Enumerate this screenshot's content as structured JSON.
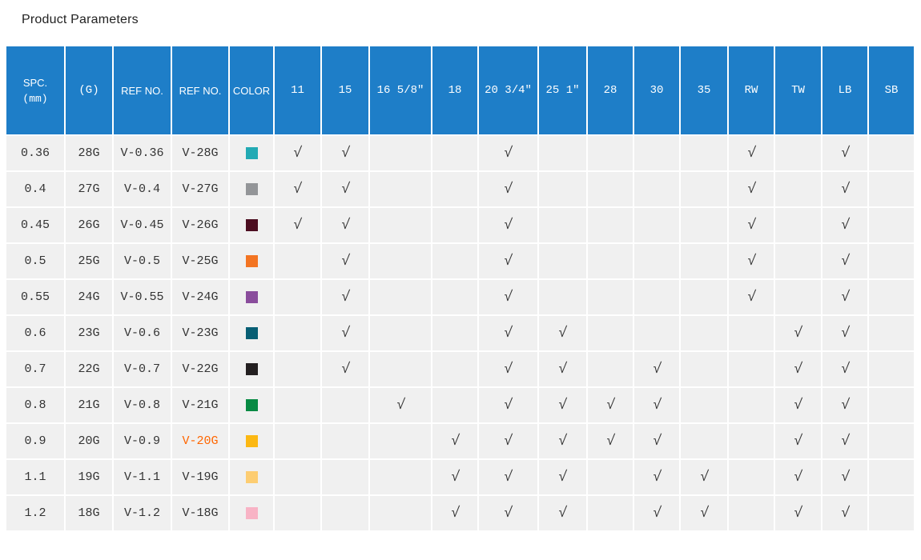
{
  "page": {
    "title": "Product Parameters"
  },
  "colors": {
    "header_bg": "#1e7ec8",
    "cell_bg": "#f0f0f0",
    "text": "#333333",
    "highlight": "#ff6600",
    "title_text": "#222222"
  },
  "table": {
    "header": {
      "spc_label": "SPC.",
      "spc_unit": "(mm)",
      "gauge_label": "(G)",
      "ref_no_1_label": "REF NO.",
      "ref_no_2_label": "REF NO.",
      "color_label": "COLOR",
      "check_columns": [
        "11",
        "15",
        "16 5/8″",
        "18",
        "20 3/4″",
        "25 1″",
        "28",
        "30",
        "35",
        "RW",
        "TW",
        "LB",
        "SB"
      ]
    },
    "check_glyph": "√",
    "rows": [
      {
        "spc": "0.36",
        "gauge": "28G",
        "ref_no_1": "V-0.36",
        "ref_no_2": "V-28G",
        "ref_no_2_highlight": false,
        "swatch_color": "#22aab4",
        "checks": [
          1,
          1,
          0,
          0,
          1,
          0,
          0,
          0,
          0,
          1,
          0,
          1,
          0
        ]
      },
      {
        "spc": "0.4",
        "gauge": "27G",
        "ref_no_1": "V-0.4",
        "ref_no_2": "V-27G",
        "ref_no_2_highlight": false,
        "swatch_color": "#939598",
        "checks": [
          1,
          1,
          0,
          0,
          1,
          0,
          0,
          0,
          0,
          1,
          0,
          1,
          0
        ]
      },
      {
        "spc": "0.45",
        "gauge": "26G",
        "ref_no_1": "V-0.45",
        "ref_no_2": "V-26G",
        "ref_no_2_highlight": false,
        "swatch_color": "#4c0d20",
        "checks": [
          1,
          1,
          0,
          0,
          1,
          0,
          0,
          0,
          0,
          1,
          0,
          1,
          0
        ]
      },
      {
        "spc": "0.5",
        "gauge": "25G",
        "ref_no_1": "V-0.5",
        "ref_no_2": "V-25G",
        "ref_no_2_highlight": false,
        "swatch_color": "#f37422",
        "checks": [
          0,
          1,
          0,
          0,
          1,
          0,
          0,
          0,
          0,
          1,
          0,
          1,
          0
        ]
      },
      {
        "spc": "0.55",
        "gauge": "24G",
        "ref_no_1": "V-0.55",
        "ref_no_2": "V-24G",
        "ref_no_2_highlight": false,
        "swatch_color": "#8a4d9c",
        "checks": [
          0,
          1,
          0,
          0,
          1,
          0,
          0,
          0,
          0,
          1,
          0,
          1,
          0
        ]
      },
      {
        "spc": "0.6",
        "gauge": "23G",
        "ref_no_1": "V-0.6",
        "ref_no_2": "V-23G",
        "ref_no_2_highlight": false,
        "swatch_color": "#075e74",
        "checks": [
          0,
          1,
          0,
          0,
          1,
          1,
          0,
          0,
          0,
          0,
          1,
          1,
          0
        ]
      },
      {
        "spc": "0.7",
        "gauge": "22G",
        "ref_no_1": "V-0.7",
        "ref_no_2": "V-22G",
        "ref_no_2_highlight": false,
        "swatch_color": "#231f20",
        "checks": [
          0,
          1,
          0,
          0,
          1,
          1,
          0,
          1,
          0,
          0,
          1,
          1,
          0
        ]
      },
      {
        "spc": "0.8",
        "gauge": "21G",
        "ref_no_1": "V-0.8",
        "ref_no_2": "V-21G",
        "ref_no_2_highlight": false,
        "swatch_color": "#078a43",
        "checks": [
          0,
          0,
          1,
          0,
          1,
          1,
          1,
          1,
          0,
          0,
          1,
          1,
          0
        ]
      },
      {
        "spc": "0.9",
        "gauge": "20G",
        "ref_no_1": "V-0.9",
        "ref_no_2": "V-20G",
        "ref_no_2_highlight": true,
        "swatch_color": "#fcb813",
        "checks": [
          0,
          0,
          0,
          1,
          1,
          1,
          1,
          1,
          0,
          0,
          1,
          1,
          0
        ]
      },
      {
        "spc": "1.1",
        "gauge": "19G",
        "ref_no_1": "V-1.1",
        "ref_no_2": "V-19G",
        "ref_no_2_highlight": false,
        "swatch_color": "#fdcd72",
        "checks": [
          0,
          0,
          0,
          1,
          1,
          1,
          0,
          1,
          1,
          0,
          1,
          1,
          0
        ]
      },
      {
        "spc": "1.2",
        "gauge": "18G",
        "ref_no_1": "V-1.2",
        "ref_no_2": "V-18G",
        "ref_no_2_highlight": false,
        "swatch_color": "#f8b3c5",
        "checks": [
          0,
          0,
          0,
          1,
          1,
          1,
          0,
          1,
          1,
          0,
          1,
          1,
          0
        ]
      }
    ]
  }
}
